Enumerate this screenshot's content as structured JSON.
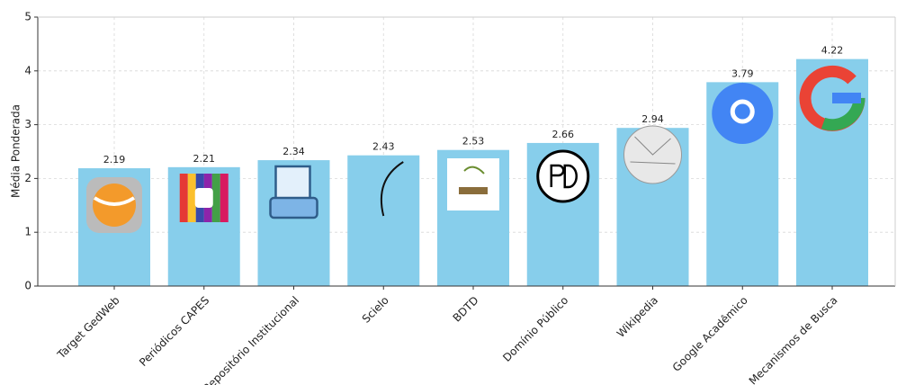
{
  "chart_data": {
    "type": "bar",
    "y_label": "Média Ponderada",
    "categories": [
      "Target GedWeb",
      "Periódicos CAPES",
      "Repositório Institucional",
      "Scielo",
      "BDTD",
      "Domínio Público",
      "Wikipedia",
      "Google Acadêmico",
      "Mecanismos de Busca"
    ],
    "values": [
      2.19,
      2.21,
      2.34,
      2.43,
      2.53,
      2.66,
      2.94,
      3.79,
      4.22
    ],
    "color": "#87ceeb",
    "ylim": [
      0,
      5
    ],
    "yticks": [
      0,
      1,
      2,
      3,
      4,
      5
    ],
    "grid": true
  }
}
